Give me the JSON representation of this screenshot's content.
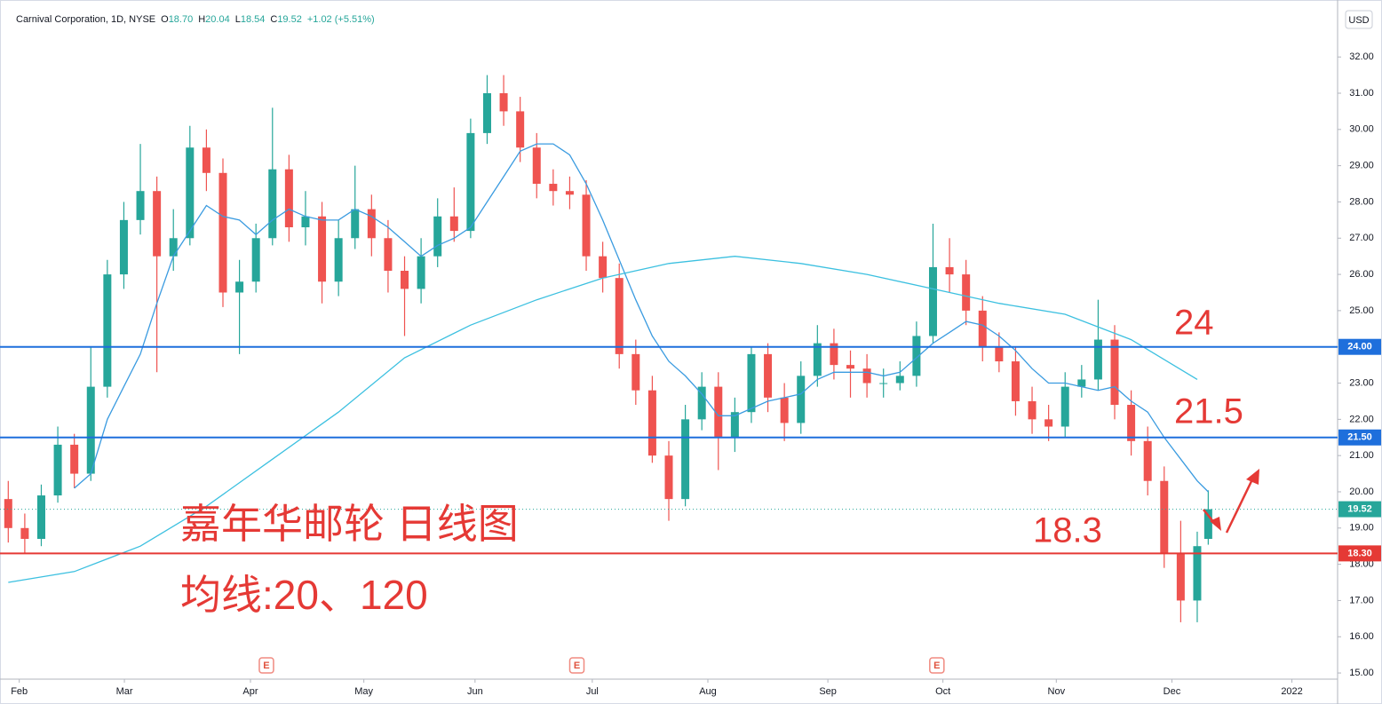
{
  "chart_data": {
    "type": "candlestick",
    "header": {
      "title": "Carnival Corporation, 1D, NYSE",
      "items": [
        {
          "key": "O",
          "value": "18.70"
        },
        {
          "key": "H",
          "value": "20.04"
        },
        {
          "key": "L",
          "value": "18.54"
        },
        {
          "key": "C",
          "value": "19.52"
        }
      ],
      "change": "+1.02 (+5.51%)"
    },
    "currency": "USD",
    "up_color": "#26a69a",
    "down_color": "#ef5350",
    "x": [
      0,
      3,
      6,
      9,
      12,
      15,
      18,
      21,
      24,
      27,
      30,
      33,
      36,
      39,
      42,
      45,
      48,
      51,
      54,
      57,
      60,
      63,
      66,
      69,
      72,
      75,
      78,
      81,
      84,
      87,
      90,
      93,
      96,
      99,
      102,
      105,
      108,
      111,
      114,
      117,
      120,
      123,
      126,
      129,
      132,
      135,
      138,
      141,
      144,
      147,
      150,
      153,
      156,
      159,
      162,
      165,
      168,
      171,
      174,
      177,
      180,
      183,
      186,
      189,
      192,
      195,
      198,
      201,
      204,
      207,
      210,
      213,
      216,
      218
    ],
    "open": [
      19.8,
      19.0,
      18.7,
      19.9,
      21.3,
      20.5,
      22.9,
      26.0,
      27.5,
      28.3,
      26.5,
      27.0,
      29.5,
      28.8,
      25.5,
      25.8,
      27.0,
      28.9,
      27.3,
      27.6,
      25.8,
      27.0,
      27.8,
      27.0,
      26.1,
      25.6,
      26.5,
      27.6,
      27.2,
      29.9,
      31.0,
      30.5,
      29.5,
      28.5,
      28.3,
      28.2,
      26.5,
      25.9,
      23.8,
      22.8,
      21.0,
      19.8,
      22.0,
      22.9,
      21.5,
      22.2,
      23.8,
      22.6,
      21.9,
      23.2,
      24.1,
      23.5,
      23.4,
      23.0,
      23.0,
      23.2,
      24.3,
      26.2,
      26.0,
      25.0,
      24.0,
      23.6,
      22.5,
      22.0,
      21.8,
      22.9,
      23.1,
      24.2,
      22.4,
      21.4,
      20.3,
      18.3,
      17.0,
      18.7
    ],
    "high": [
      20.3,
      19.4,
      20.2,
      21.8,
      21.6,
      24.0,
      26.4,
      28.0,
      29.6,
      28.7,
      27.8,
      30.1,
      30.0,
      29.2,
      26.4,
      27.4,
      30.6,
      29.3,
      28.3,
      28.0,
      27.5,
      29.0,
      28.2,
      27.5,
      26.5,
      27.0,
      28.1,
      28.4,
      30.3,
      31.5,
      31.5,
      30.9,
      29.9,
      28.9,
      28.7,
      28.6,
      26.9,
      26.3,
      24.2,
      23.2,
      21.4,
      22.4,
      23.3,
      23.3,
      22.6,
      24.0,
      24.1,
      23.0,
      23.6,
      24.6,
      24.5,
      23.9,
      23.8,
      23.4,
      23.6,
      24.7,
      27.4,
      27.0,
      26.4,
      25.4,
      24.4,
      24.0,
      22.9,
      22.4,
      23.3,
      23.5,
      25.3,
      24.6,
      22.8,
      21.8,
      20.7,
      19.2,
      18.9,
      20.04
    ],
    "low": [
      18.6,
      18.3,
      18.5,
      19.7,
      20.1,
      20.3,
      22.6,
      25.6,
      27.1,
      23.3,
      26.1,
      26.8,
      28.3,
      25.1,
      23.8,
      25.5,
      26.8,
      26.9,
      26.8,
      25.2,
      25.4,
      26.7,
      26.5,
      25.5,
      24.3,
      25.2,
      26.2,
      26.9,
      27.0,
      29.6,
      30.1,
      29.1,
      28.1,
      27.9,
      27.8,
      26.1,
      25.5,
      23.4,
      22.4,
      20.8,
      19.2,
      19.6,
      21.7,
      20.6,
      21.1,
      21.9,
      22.2,
      21.4,
      21.6,
      22.9,
      23.1,
      22.6,
      22.6,
      22.6,
      22.8,
      22.9,
      24.1,
      25.5,
      24.6,
      23.6,
      23.3,
      22.1,
      21.6,
      21.4,
      21.5,
      22.6,
      22.8,
      22.0,
      21.0,
      19.9,
      17.9,
      16.4,
      16.4,
      18.54
    ],
    "close": [
      19.0,
      18.7,
      19.9,
      21.3,
      20.5,
      22.9,
      26.0,
      27.5,
      28.3,
      26.5,
      27.0,
      29.5,
      28.8,
      25.5,
      25.8,
      27.0,
      28.9,
      27.3,
      27.6,
      25.8,
      27.0,
      27.8,
      27.0,
      26.1,
      25.6,
      26.5,
      27.6,
      27.2,
      29.9,
      31.0,
      30.5,
      29.5,
      28.5,
      28.3,
      28.2,
      26.5,
      25.9,
      23.8,
      22.8,
      21.0,
      19.8,
      22.0,
      22.9,
      21.5,
      22.2,
      23.8,
      22.6,
      21.9,
      23.2,
      24.1,
      23.5,
      23.4,
      23.0,
      23.0,
      23.2,
      24.3,
      26.2,
      26.0,
      25.0,
      24.0,
      23.6,
      22.5,
      22.0,
      21.8,
      22.9,
      23.1,
      24.2,
      22.4,
      21.4,
      20.3,
      18.3,
      17.0,
      18.5,
      19.52
    ],
    "series": [
      {
        "color": "#3a9be0",
        "x": [
          12,
          15,
          18,
          21,
          24,
          27,
          30,
          33,
          36,
          39,
          42,
          45,
          48,
          51,
          54,
          57,
          60,
          63,
          66,
          69,
          72,
          75,
          78,
          81,
          84,
          87,
          90,
          93,
          96,
          99,
          102,
          105,
          108,
          111,
          114,
          117,
          120,
          123,
          126,
          129,
          132,
          135,
          138,
          141,
          144,
          147,
          150,
          153,
          156,
          159,
          162,
          165,
          168,
          171,
          174,
          177,
          180,
          183,
          186,
          189,
          192,
          195,
          198,
          201,
          204,
          207,
          210,
          213,
          216,
          218
        ],
        "values": [
          20.1,
          20.5,
          22.0,
          22.9,
          23.8,
          25.2,
          26.5,
          27.2,
          27.9,
          27.6,
          27.5,
          27.1,
          27.5,
          27.8,
          27.6,
          27.5,
          27.5,
          27.8,
          27.6,
          27.3,
          26.9,
          26.5,
          26.8,
          27.0,
          27.3,
          28.0,
          28.7,
          29.4,
          29.6,
          29.6,
          29.3,
          28.5,
          27.5,
          26.4,
          25.3,
          24.3,
          23.6,
          23.2,
          22.7,
          22.1,
          22.1,
          22.3,
          22.5,
          22.6,
          22.7,
          23.1,
          23.3,
          23.3,
          23.3,
          23.2,
          23.3,
          23.7,
          24.1,
          24.4,
          24.7,
          24.6,
          24.3,
          23.9,
          23.4,
          23.0,
          23.0,
          22.9,
          22.8,
          22.9,
          22.5,
          22.2,
          21.5,
          20.9,
          20.3,
          20.0
        ]
      },
      {
        "color": "#3cc0e0",
        "x": [
          0,
          12,
          24,
          36,
          48,
          60,
          72,
          84,
          96,
          108,
          120,
          132,
          144,
          156,
          168,
          180,
          192,
          204,
          216
        ],
        "values": [
          17.5,
          17.8,
          18.5,
          19.6,
          20.9,
          22.2,
          23.7,
          24.6,
          25.3,
          25.9,
          26.3,
          26.5,
          26.3,
          26.0,
          25.6,
          25.2,
          24.9,
          24.2,
          23.1
        ]
      }
    ],
    "levels": [
      {
        "value": 24,
        "label": "24.00",
        "color": "#1e6fdc"
      },
      {
        "value": 21.5,
        "label": "21.50",
        "color": "#1e6fdc"
      },
      {
        "value": 18.3,
        "label": "18.30",
        "color": "#e53935"
      }
    ],
    "last_price": 19.52,
    "annotations": [
      "24",
      "21.5",
      "18.3",
      "嘉年华邮轮 日线图",
      "均线:20、120"
    ],
    "earnings": [
      {
        "x": 46.9,
        "label": "E"
      },
      {
        "x": 103.3,
        "label": "E"
      },
      {
        "x": 168.7,
        "label": "E"
      }
    ],
    "xlim": [
      -1.5,
      241.5
    ],
    "xticks": [
      {
        "value": 2.0,
        "label": "Feb"
      },
      {
        "value": 21.1,
        "label": "Mar"
      },
      {
        "value": 44.0,
        "label": "Apr"
      },
      {
        "value": 64.6,
        "label": "May"
      },
      {
        "value": 84.8,
        "label": "Jun"
      },
      {
        "value": 106.1,
        "label": "Jul"
      },
      {
        "value": 127.1,
        "label": "Aug"
      },
      {
        "value": 148.9,
        "label": "Sep"
      },
      {
        "value": 169.8,
        "label": "Oct"
      },
      {
        "value": 190.4,
        "label": "Nov"
      },
      {
        "value": 211.4,
        "label": "Dec"
      },
      {
        "value": 233.2,
        "label": "2022"
      }
    ],
    "ylim": [
      14.83,
      33.45
    ],
    "yticks": [
      {
        "value": 15,
        "label": "15.00"
      },
      {
        "value": 16,
        "label": "16.00"
      },
      {
        "value": 17,
        "label": "17.00"
      },
      {
        "value": 18,
        "label": "18.00"
      },
      {
        "value": 19,
        "label": "19.00"
      },
      {
        "value": 20,
        "label": "20.00"
      },
      {
        "value": 21,
        "label": "21.00"
      },
      {
        "value": 22,
        "label": "22.00"
      },
      {
        "value": 23,
        "label": "23.00"
      },
      {
        "value": 24,
        "label": "24.00"
      },
      {
        "value": 25,
        "label": "25.00"
      },
      {
        "value": 26,
        "label": "26.00"
      },
      {
        "value": 27,
        "label": "27.00"
      },
      {
        "value": 28,
        "label": "28.00"
      },
      {
        "value": 29,
        "label": "29.00"
      },
      {
        "value": 30,
        "label": "30.00"
      },
      {
        "value": 31,
        "label": "31.00"
      },
      {
        "value": 32,
        "label": "32.00"
      }
    ]
  }
}
